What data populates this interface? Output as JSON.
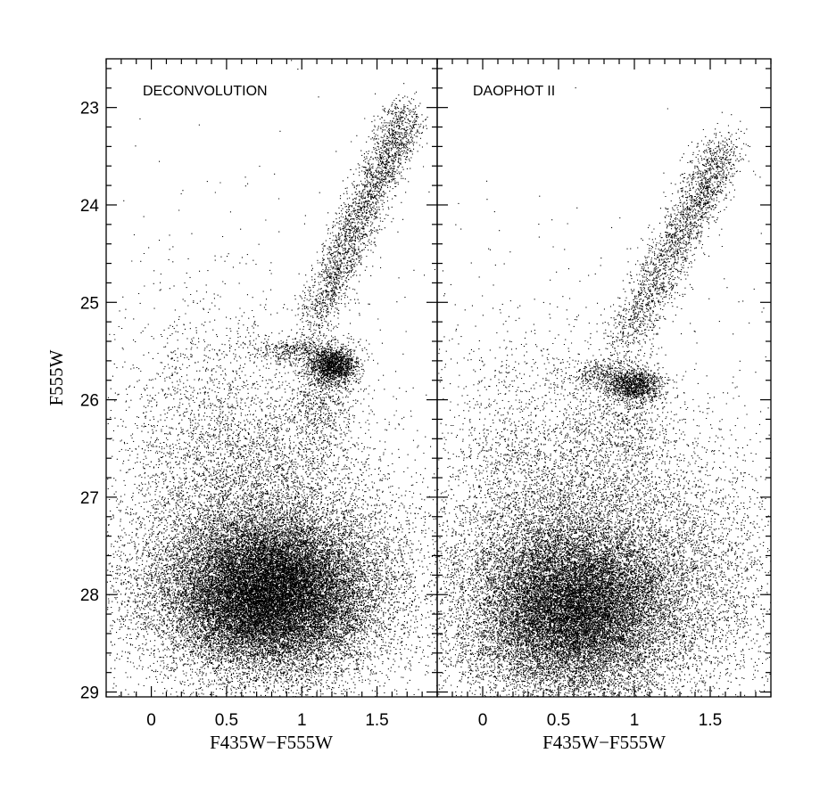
{
  "chart_data": [
    {
      "type": "scatter",
      "title": "",
      "panel_label": "DECONVOLUTION",
      "xlabel": "F435W−F555W",
      "ylabel": "F555W",
      "xlim": [
        -0.3,
        1.9
      ],
      "ylim": [
        29.05,
        22.5
      ],
      "y_inverted": true,
      "xticks": [
        0,
        0.5,
        1,
        1.5
      ],
      "xtick_labels": [
        "0",
        "0.5",
        "1",
        "1.5"
      ],
      "yticks": [
        23,
        24,
        25,
        26,
        27,
        28,
        29
      ],
      "ytick_labels": [
        "23",
        "24",
        "25",
        "26",
        "27",
        "28",
        "29"
      ],
      "grid": false,
      "density_components": [
        {
          "feature": "main-sequence clump",
          "center": [
            0.78,
            28.0
          ],
          "spread": [
            0.32,
            0.38
          ],
          "n_points": 20000
        },
        {
          "feature": "main-sequence halo",
          "center": [
            0.78,
            27.9
          ],
          "spread": [
            0.55,
            0.55
          ],
          "n_points": 9000
        },
        {
          "feature": "upper main sequence",
          "center": [
            0.7,
            26.7
          ],
          "spread": [
            0.4,
            0.5
          ],
          "n_points": 2500
        },
        {
          "feature": "red clump",
          "center": [
            1.2,
            25.65
          ],
          "spread": [
            0.08,
            0.09
          ],
          "n_points": 1500
        },
        {
          "feature": "red clump extension",
          "center": [
            0.95,
            25.5
          ],
          "spread": [
            0.18,
            0.07
          ],
          "n_points": 500
        },
        {
          "feature": "red clump base",
          "center": [
            1.15,
            26.0
          ],
          "spread": [
            0.12,
            0.3
          ],
          "n_points": 600
        },
        {
          "feature": "blue plume",
          "center": [
            0.3,
            26.2
          ],
          "spread": [
            0.25,
            0.7
          ],
          "n_points": 900
        },
        {
          "feature": "sparse field",
          "center": [
            0.8,
            26.5
          ],
          "spread": [
            0.7,
            1.4
          ],
          "n_points": 700
        }
      ],
      "rgb_branch": {
        "from": [
          1.05,
          25.3
        ],
        "to": [
          1.7,
          23.05
        ],
        "width": 0.07,
        "n_points": 2600
      }
    },
    {
      "type": "scatter",
      "title": "",
      "panel_label": "DAOPHOT II",
      "xlabel": "F435W−F555W",
      "ylabel": "",
      "xlim": [
        -0.3,
        1.9
      ],
      "ylim": [
        29.05,
        22.5
      ],
      "y_inverted": true,
      "xticks": [
        0,
        0.5,
        1,
        1.5
      ],
      "xtick_labels": [
        "0",
        "0.5",
        "1",
        "1.5"
      ],
      "yticks": [
        23,
        24,
        25,
        26,
        27,
        28,
        29
      ],
      "ytick_labels": [],
      "grid": false,
      "density_components": [
        {
          "feature": "main-sequence clump",
          "center": [
            0.6,
            28.15
          ],
          "spread": [
            0.3,
            0.42
          ],
          "n_points": 14000
        },
        {
          "feature": "main-sequence halo",
          "center": [
            0.62,
            28.1
          ],
          "spread": [
            0.55,
            0.6
          ],
          "n_points": 9000
        },
        {
          "feature": "upper main sequence",
          "center": [
            0.65,
            27.0
          ],
          "spread": [
            0.45,
            0.6
          ],
          "n_points": 2800
        },
        {
          "feature": "red clump",
          "center": [
            1.0,
            25.85
          ],
          "spread": [
            0.09,
            0.08
          ],
          "n_points": 1000
        },
        {
          "feature": "red clump extension",
          "center": [
            0.8,
            25.75
          ],
          "spread": [
            0.14,
            0.08
          ],
          "n_points": 400
        },
        {
          "feature": "red clump base",
          "center": [
            0.95,
            26.2
          ],
          "spread": [
            0.14,
            0.35
          ],
          "n_points": 600
        },
        {
          "feature": "blue plume",
          "center": [
            0.2,
            26.6
          ],
          "spread": [
            0.3,
            0.8
          ],
          "n_points": 900
        },
        {
          "feature": "red scatter",
          "center": [
            1.5,
            27.7
          ],
          "spread": [
            0.25,
            0.6
          ],
          "n_points": 900
        },
        {
          "feature": "sparse field",
          "center": [
            0.8,
            26.8
          ],
          "spread": [
            0.75,
            1.3
          ],
          "n_points": 800
        }
      ],
      "rgb_branch": {
        "from": [
          0.9,
          25.5
        ],
        "to": [
          1.6,
          23.4
        ],
        "width": 0.08,
        "n_points": 2300
      }
    }
  ]
}
